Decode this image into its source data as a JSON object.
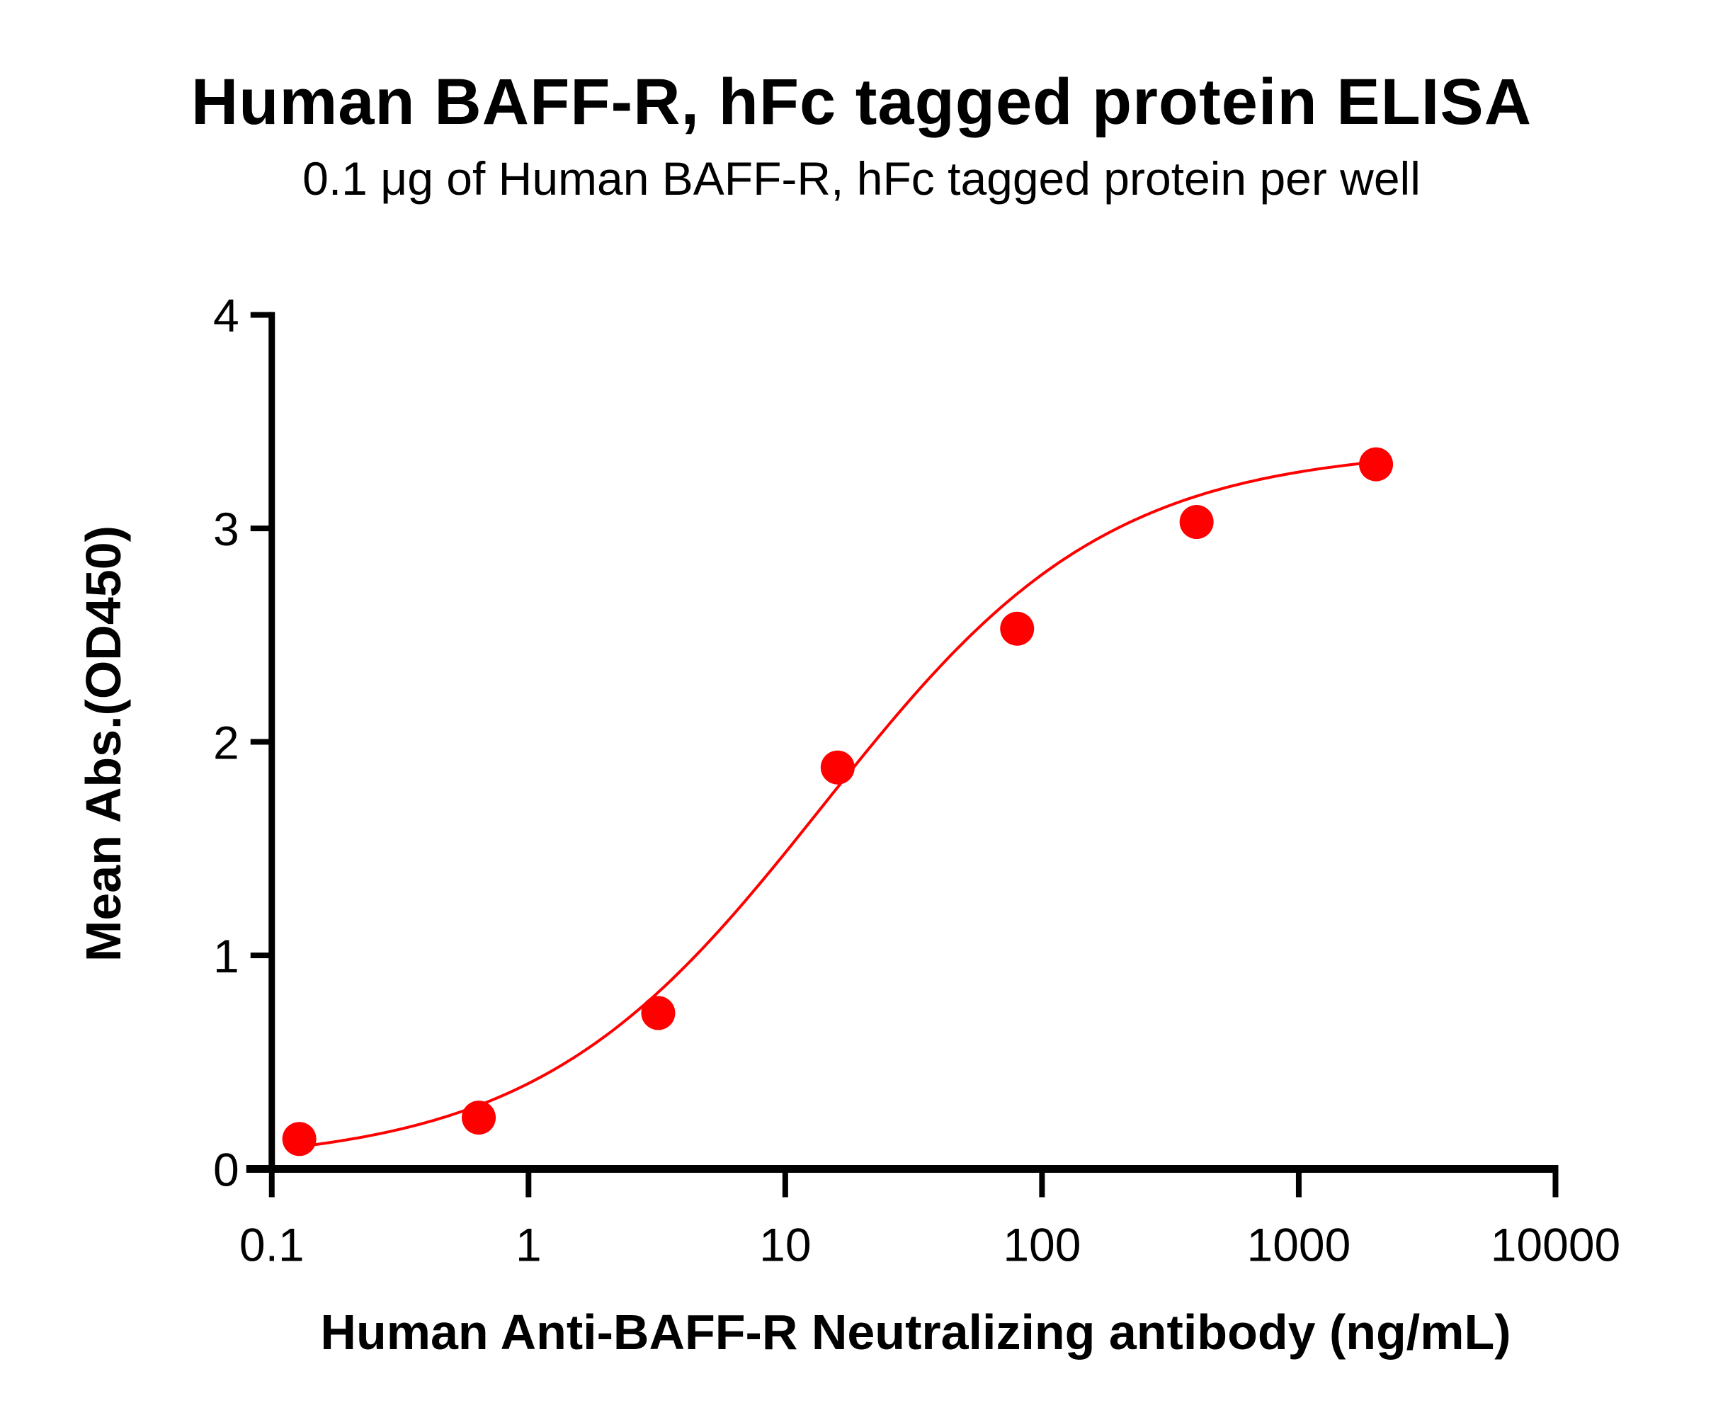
{
  "title": "Human BAFF-R, hFc tagged protein ELISA",
  "subtitle": "0.1 μg of Human BAFF-R, hFc tagged protein per well",
  "colors": {
    "series": "#ff0000",
    "axis": "#000000",
    "background": "#ffffff"
  },
  "chart_data": {
    "type": "scatter",
    "title": "Human BAFF-R, hFc tagged protein ELISA",
    "subtitle": "0.1 μg of Human BAFF-R, hFc tagged protein per well",
    "xlabel": "Human Anti-BAFF-R Neutralizing antibody (ng/mL)",
    "ylabel": "Mean Abs.(OD450)",
    "xscale": "log",
    "xlim": [
      0.1,
      10000
    ],
    "ylim": [
      0,
      4
    ],
    "xticks": [
      "0.1",
      "1",
      "10",
      "100",
      "1000",
      "10000"
    ],
    "yticks": [
      "0",
      "1",
      "2",
      "3",
      "4"
    ],
    "grid": false,
    "legend": "none",
    "series": [
      {
        "name": "Human Anti-BAFF-R Neutralizing antibody",
        "color": "#ff0000",
        "marker": "circle",
        "fit": "4PL sigmoidal curve",
        "x": [
          0.128,
          0.64,
          3.2,
          16,
          80,
          400,
          2000
        ],
        "y": [
          0.14,
          0.24,
          0.73,
          1.88,
          2.53,
          3.03,
          3.3
        ]
      }
    ]
  }
}
